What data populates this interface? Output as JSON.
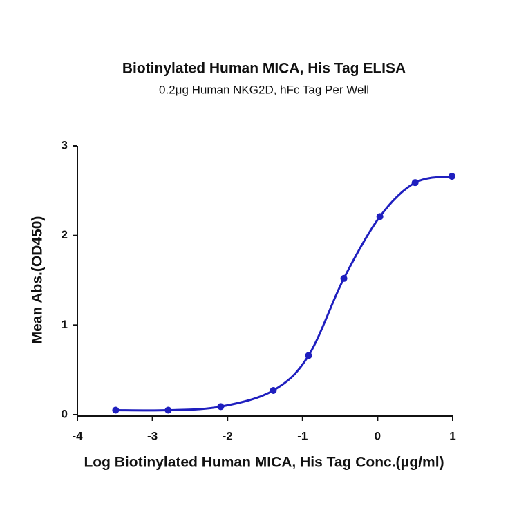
{
  "chart_data": {
    "type": "scatter",
    "title": "Biotinylated Human MICA, His Tag ELISA",
    "subtitle": "0.2μg Human NKG2D, hFc Tag Per Well",
    "x_label": "Log Biotinylated Human MICA, His Tag Conc.(μg/ml)",
    "y_label": "Mean Abs.(OD450)",
    "x": [
      -3.49,
      -2.79,
      -2.09,
      -1.39,
      -0.92,
      -0.45,
      0.03,
      0.5,
      0.99
    ],
    "series": [
      {
        "color": "#1f1fbf",
        "values": [
          0.05,
          0.05,
          0.09,
          0.27,
          0.66,
          1.52,
          2.21,
          2.59,
          2.66
        ]
      }
    ],
    "xlim": [
      -4,
      1
    ],
    "xticks": [
      -4,
      -3,
      -2,
      -1,
      0,
      1
    ],
    "ylim": [
      0,
      3
    ],
    "yticks": [
      0,
      1,
      2,
      3
    ]
  }
}
